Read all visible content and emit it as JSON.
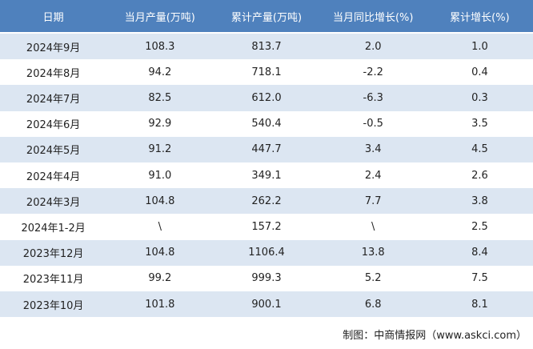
{
  "table": {
    "header": [
      "日期",
      "当月产量(万吨)",
      "累计产量(万吨)",
      "当月同比增长(%)",
      "累计增长(%)"
    ],
    "rows": [
      [
        "2024年9月",
        "108.3",
        "813.7",
        "2.0",
        "1.0"
      ],
      [
        "2024年8月",
        "94.2",
        "718.1",
        "-2.2",
        "0.4"
      ],
      [
        "2024年7月",
        "82.5",
        "612.0",
        "-6.3",
        "0.3"
      ],
      [
        "2024年6月",
        "92.9",
        "540.4",
        "-0.5",
        "3.5"
      ],
      [
        "2024年5月",
        "91.2",
        "447.7",
        "3.4",
        "4.5"
      ],
      [
        "2024年4月",
        "91.0",
        "349.1",
        "2.4",
        "2.6"
      ],
      [
        "2024年3月",
        "104.8",
        "262.2",
        "7.7",
        "3.8"
      ],
      [
        "2024年1-2月",
        "\\",
        "157.2",
        "\\",
        "2.5"
      ],
      [
        "2023年12月",
        "104.8",
        "1106.4",
        "13.8",
        "8.4"
      ],
      [
        "2023年11月",
        "99.2",
        "999.3",
        "5.2",
        "7.5"
      ],
      [
        "2023年10月",
        "101.8",
        "900.1",
        "6.8",
        "8.1"
      ]
    ]
  },
  "footer": "制图：中商情报网（www.askci.com）"
}
